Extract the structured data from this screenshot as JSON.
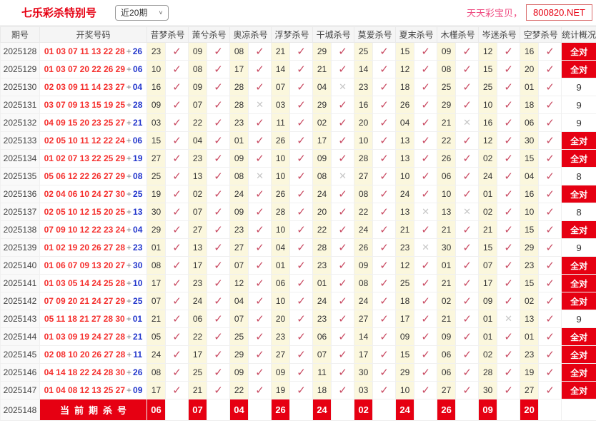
{
  "header": {
    "title": "七乐彩杀特别号",
    "range_value": "近20期",
    "site_name": "天天彩宝贝，",
    "site_domain": "800820.NET"
  },
  "icons": {
    "check": "✓",
    "x": "✕",
    "chevron": "˅"
  },
  "colors": {
    "accent_red": "#e60012",
    "check_mark": "#c94a62",
    "miss_mark": "#c6c6c6",
    "winning_red": "#f5302e",
    "special_blue": "#2236cc",
    "kill_cell_yellow": "#fbf7dd",
    "brand_pink": "#ef4b81"
  },
  "table": {
    "plus": "+",
    "columns": [
      "期号",
      "开奖号码",
      "昔梦杀号",
      "萧兮杀号",
      "奥凉杀号",
      "浮梦杀号",
      "干城杀号",
      "莫爱杀号",
      "夏末杀号",
      "木槿杀号",
      "岑迷杀号",
      "空梦杀号",
      "统计概况"
    ],
    "rows": [
      {
        "period": "2025128",
        "main": "01 03 07 11 13 22 28",
        "special": "26",
        "kills": [
          [
            "23",
            1
          ],
          [
            "09",
            1
          ],
          [
            "08",
            1
          ],
          [
            "21",
            1
          ],
          [
            "29",
            1
          ],
          [
            "25",
            1
          ],
          [
            "15",
            1
          ],
          [
            "09",
            1
          ],
          [
            "12",
            1
          ],
          [
            "16",
            1
          ]
        ],
        "stat": "全对",
        "all": true
      },
      {
        "period": "2025129",
        "main": "01 03 07 20 22 26 29",
        "special": "06",
        "kills": [
          [
            "10",
            1
          ],
          [
            "08",
            1
          ],
          [
            "17",
            1
          ],
          [
            "14",
            1
          ],
          [
            "21",
            1
          ],
          [
            "14",
            1
          ],
          [
            "12",
            1
          ],
          [
            "08",
            1
          ],
          [
            "15",
            1
          ],
          [
            "20",
            1
          ]
        ],
        "stat": "全对",
        "all": true
      },
      {
        "period": "2025130",
        "main": "02 03 09 11 14 23 27",
        "special": "04",
        "kills": [
          [
            "16",
            1
          ],
          [
            "09",
            1
          ],
          [
            "28",
            1
          ],
          [
            "07",
            1
          ],
          [
            "04",
            0
          ],
          [
            "23",
            1
          ],
          [
            "18",
            1
          ],
          [
            "25",
            1
          ],
          [
            "25",
            1
          ],
          [
            "01",
            1
          ]
        ],
        "stat": "9",
        "all": false
      },
      {
        "period": "2025131",
        "main": "03 07 09 13 15 19 25",
        "special": "28",
        "kills": [
          [
            "09",
            1
          ],
          [
            "07",
            1
          ],
          [
            "28",
            0
          ],
          [
            "03",
            1
          ],
          [
            "29",
            1
          ],
          [
            "16",
            1
          ],
          [
            "26",
            1
          ],
          [
            "29",
            1
          ],
          [
            "10",
            1
          ],
          [
            "18",
            1
          ]
        ],
        "stat": "9",
        "all": false
      },
      {
        "period": "2025132",
        "main": "04 09 15 20 23 25 27",
        "special": "21",
        "kills": [
          [
            "03",
            1
          ],
          [
            "22",
            1
          ],
          [
            "23",
            1
          ],
          [
            "11",
            1
          ],
          [
            "02",
            1
          ],
          [
            "20",
            1
          ],
          [
            "04",
            1
          ],
          [
            "21",
            0
          ],
          [
            "16",
            1
          ],
          [
            "06",
            1
          ]
        ],
        "stat": "9",
        "all": false
      },
      {
        "period": "2025133",
        "main": "02 05 10 11 12 22 24",
        "special": "06",
        "kills": [
          [
            "15",
            1
          ],
          [
            "04",
            1
          ],
          [
            "01",
            1
          ],
          [
            "26",
            1
          ],
          [
            "17",
            1
          ],
          [
            "10",
            1
          ],
          [
            "13",
            1
          ],
          [
            "22",
            1
          ],
          [
            "12",
            1
          ],
          [
            "30",
            1
          ]
        ],
        "stat": "全对",
        "all": true
      },
      {
        "period": "2025134",
        "main": "01 02 07 13 22 25 29",
        "special": "19",
        "kills": [
          [
            "27",
            1
          ],
          [
            "23",
            1
          ],
          [
            "09",
            1
          ],
          [
            "10",
            1
          ],
          [
            "09",
            1
          ],
          [
            "28",
            1
          ],
          [
            "13",
            1
          ],
          [
            "26",
            1
          ],
          [
            "02",
            1
          ],
          [
            "15",
            1
          ]
        ],
        "stat": "全对",
        "all": true
      },
      {
        "period": "2025135",
        "main": "05 06 12 22 26 27 29",
        "special": "08",
        "kills": [
          [
            "25",
            1
          ],
          [
            "13",
            1
          ],
          [
            "08",
            0
          ],
          [
            "10",
            1
          ],
          [
            "08",
            0
          ],
          [
            "27",
            1
          ],
          [
            "10",
            1
          ],
          [
            "06",
            1
          ],
          [
            "24",
            1
          ],
          [
            "04",
            1
          ]
        ],
        "stat": "8",
        "all": false
      },
      {
        "period": "2025136",
        "main": "02 04 06 10 24 27 30",
        "special": "25",
        "kills": [
          [
            "19",
            1
          ],
          [
            "02",
            1
          ],
          [
            "24",
            1
          ],
          [
            "26",
            1
          ],
          [
            "24",
            1
          ],
          [
            "08",
            1
          ],
          [
            "24",
            1
          ],
          [
            "10",
            1
          ],
          [
            "01",
            1
          ],
          [
            "16",
            1
          ]
        ],
        "stat": "全对",
        "all": true
      },
      {
        "period": "2025137",
        "main": "02 05 10 12 15 20 25",
        "special": "13",
        "kills": [
          [
            "30",
            1
          ],
          [
            "07",
            1
          ],
          [
            "09",
            1
          ],
          [
            "28",
            1
          ],
          [
            "20",
            1
          ],
          [
            "22",
            1
          ],
          [
            "13",
            0
          ],
          [
            "13",
            0
          ],
          [
            "02",
            1
          ],
          [
            "10",
            1
          ]
        ],
        "stat": "8",
        "all": false
      },
      {
        "period": "2025138",
        "main": "07 09 10 12 22 23 24",
        "special": "04",
        "kills": [
          [
            "29",
            1
          ],
          [
            "27",
            1
          ],
          [
            "23",
            1
          ],
          [
            "10",
            1
          ],
          [
            "22",
            1
          ],
          [
            "24",
            1
          ],
          [
            "21",
            1
          ],
          [
            "21",
            1
          ],
          [
            "21",
            1
          ],
          [
            "15",
            1
          ]
        ],
        "stat": "全对",
        "all": true
      },
      {
        "period": "2025139",
        "main": "01 02 19 20 26 27 28",
        "special": "23",
        "kills": [
          [
            "01",
            1
          ],
          [
            "13",
            1
          ],
          [
            "27",
            1
          ],
          [
            "04",
            1
          ],
          [
            "28",
            1
          ],
          [
            "26",
            1
          ],
          [
            "23",
            0
          ],
          [
            "30",
            1
          ],
          [
            "15",
            1
          ],
          [
            "29",
            1
          ]
        ],
        "stat": "9",
        "all": false
      },
      {
        "period": "2025140",
        "main": "01 06 07 09 13 20 27",
        "special": "30",
        "kills": [
          [
            "08",
            1
          ],
          [
            "17",
            1
          ],
          [
            "07",
            1
          ],
          [
            "01",
            1
          ],
          [
            "23",
            1
          ],
          [
            "09",
            1
          ],
          [
            "12",
            1
          ],
          [
            "01",
            1
          ],
          [
            "07",
            1
          ],
          [
            "23",
            1
          ]
        ],
        "stat": "全对",
        "all": true
      },
      {
        "period": "2025141",
        "main": "01 03 05 14 24 25 28",
        "special": "10",
        "kills": [
          [
            "17",
            1
          ],
          [
            "23",
            1
          ],
          [
            "12",
            1
          ],
          [
            "06",
            1
          ],
          [
            "01",
            1
          ],
          [
            "08",
            1
          ],
          [
            "25",
            1
          ],
          [
            "21",
            1
          ],
          [
            "17",
            1
          ],
          [
            "15",
            1
          ]
        ],
        "stat": "全对",
        "all": true
      },
      {
        "period": "2025142",
        "main": "07 09 20 21 24 27 29",
        "special": "25",
        "kills": [
          [
            "07",
            1
          ],
          [
            "24",
            1
          ],
          [
            "04",
            1
          ],
          [
            "10",
            1
          ],
          [
            "24",
            1
          ],
          [
            "24",
            1
          ],
          [
            "18",
            1
          ],
          [
            "02",
            1
          ],
          [
            "09",
            1
          ],
          [
            "02",
            1
          ]
        ],
        "stat": "全对",
        "all": true
      },
      {
        "period": "2025143",
        "main": "05 11 18 21 27 28 30",
        "special": "01",
        "kills": [
          [
            "21",
            1
          ],
          [
            "06",
            1
          ],
          [
            "07",
            1
          ],
          [
            "20",
            1
          ],
          [
            "23",
            1
          ],
          [
            "27",
            1
          ],
          [
            "17",
            1
          ],
          [
            "21",
            1
          ],
          [
            "01",
            0
          ],
          [
            "13",
            1
          ]
        ],
        "stat": "9",
        "all": false
      },
      {
        "period": "2025144",
        "main": "01 03 09 19 24 27 28",
        "special": "21",
        "kills": [
          [
            "05",
            1
          ],
          [
            "22",
            1
          ],
          [
            "25",
            1
          ],
          [
            "23",
            1
          ],
          [
            "06",
            1
          ],
          [
            "14",
            1
          ],
          [
            "09",
            1
          ],
          [
            "09",
            1
          ],
          [
            "01",
            1
          ],
          [
            "01",
            1
          ]
        ],
        "stat": "全对",
        "all": true
      },
      {
        "period": "2025145",
        "main": "02 08 10 20 26 27 28",
        "special": "11",
        "kills": [
          [
            "24",
            1
          ],
          [
            "17",
            1
          ],
          [
            "29",
            1
          ],
          [
            "27",
            1
          ],
          [
            "07",
            1
          ],
          [
            "17",
            1
          ],
          [
            "15",
            1
          ],
          [
            "06",
            1
          ],
          [
            "02",
            1
          ],
          [
            "23",
            1
          ]
        ],
        "stat": "全对",
        "all": true
      },
      {
        "period": "2025146",
        "main": "04 14 18 22 24 28 30",
        "special": "26",
        "kills": [
          [
            "08",
            1
          ],
          [
            "25",
            1
          ],
          [
            "09",
            1
          ],
          [
            "09",
            1
          ],
          [
            "11",
            1
          ],
          [
            "30",
            1
          ],
          [
            "29",
            1
          ],
          [
            "06",
            1
          ],
          [
            "28",
            1
          ],
          [
            "19",
            1
          ]
        ],
        "stat": "全对",
        "all": true
      },
      {
        "period": "2025147",
        "main": "01 04 08 12 13 25 27",
        "special": "09",
        "kills": [
          [
            "17",
            1
          ],
          [
            "21",
            1
          ],
          [
            "22",
            1
          ],
          [
            "19",
            1
          ],
          [
            "18",
            1
          ],
          [
            "03",
            1
          ],
          [
            "10",
            1
          ],
          [
            "27",
            1
          ],
          [
            "30",
            1
          ],
          [
            "27",
            1
          ]
        ],
        "stat": "全对",
        "all": true
      }
    ],
    "current": {
      "period": "2025148",
      "banner": "当前期杀号",
      "kills": [
        "06",
        "07",
        "04",
        "26",
        "24",
        "02",
        "24",
        "26",
        "09",
        "20"
      ]
    }
  }
}
